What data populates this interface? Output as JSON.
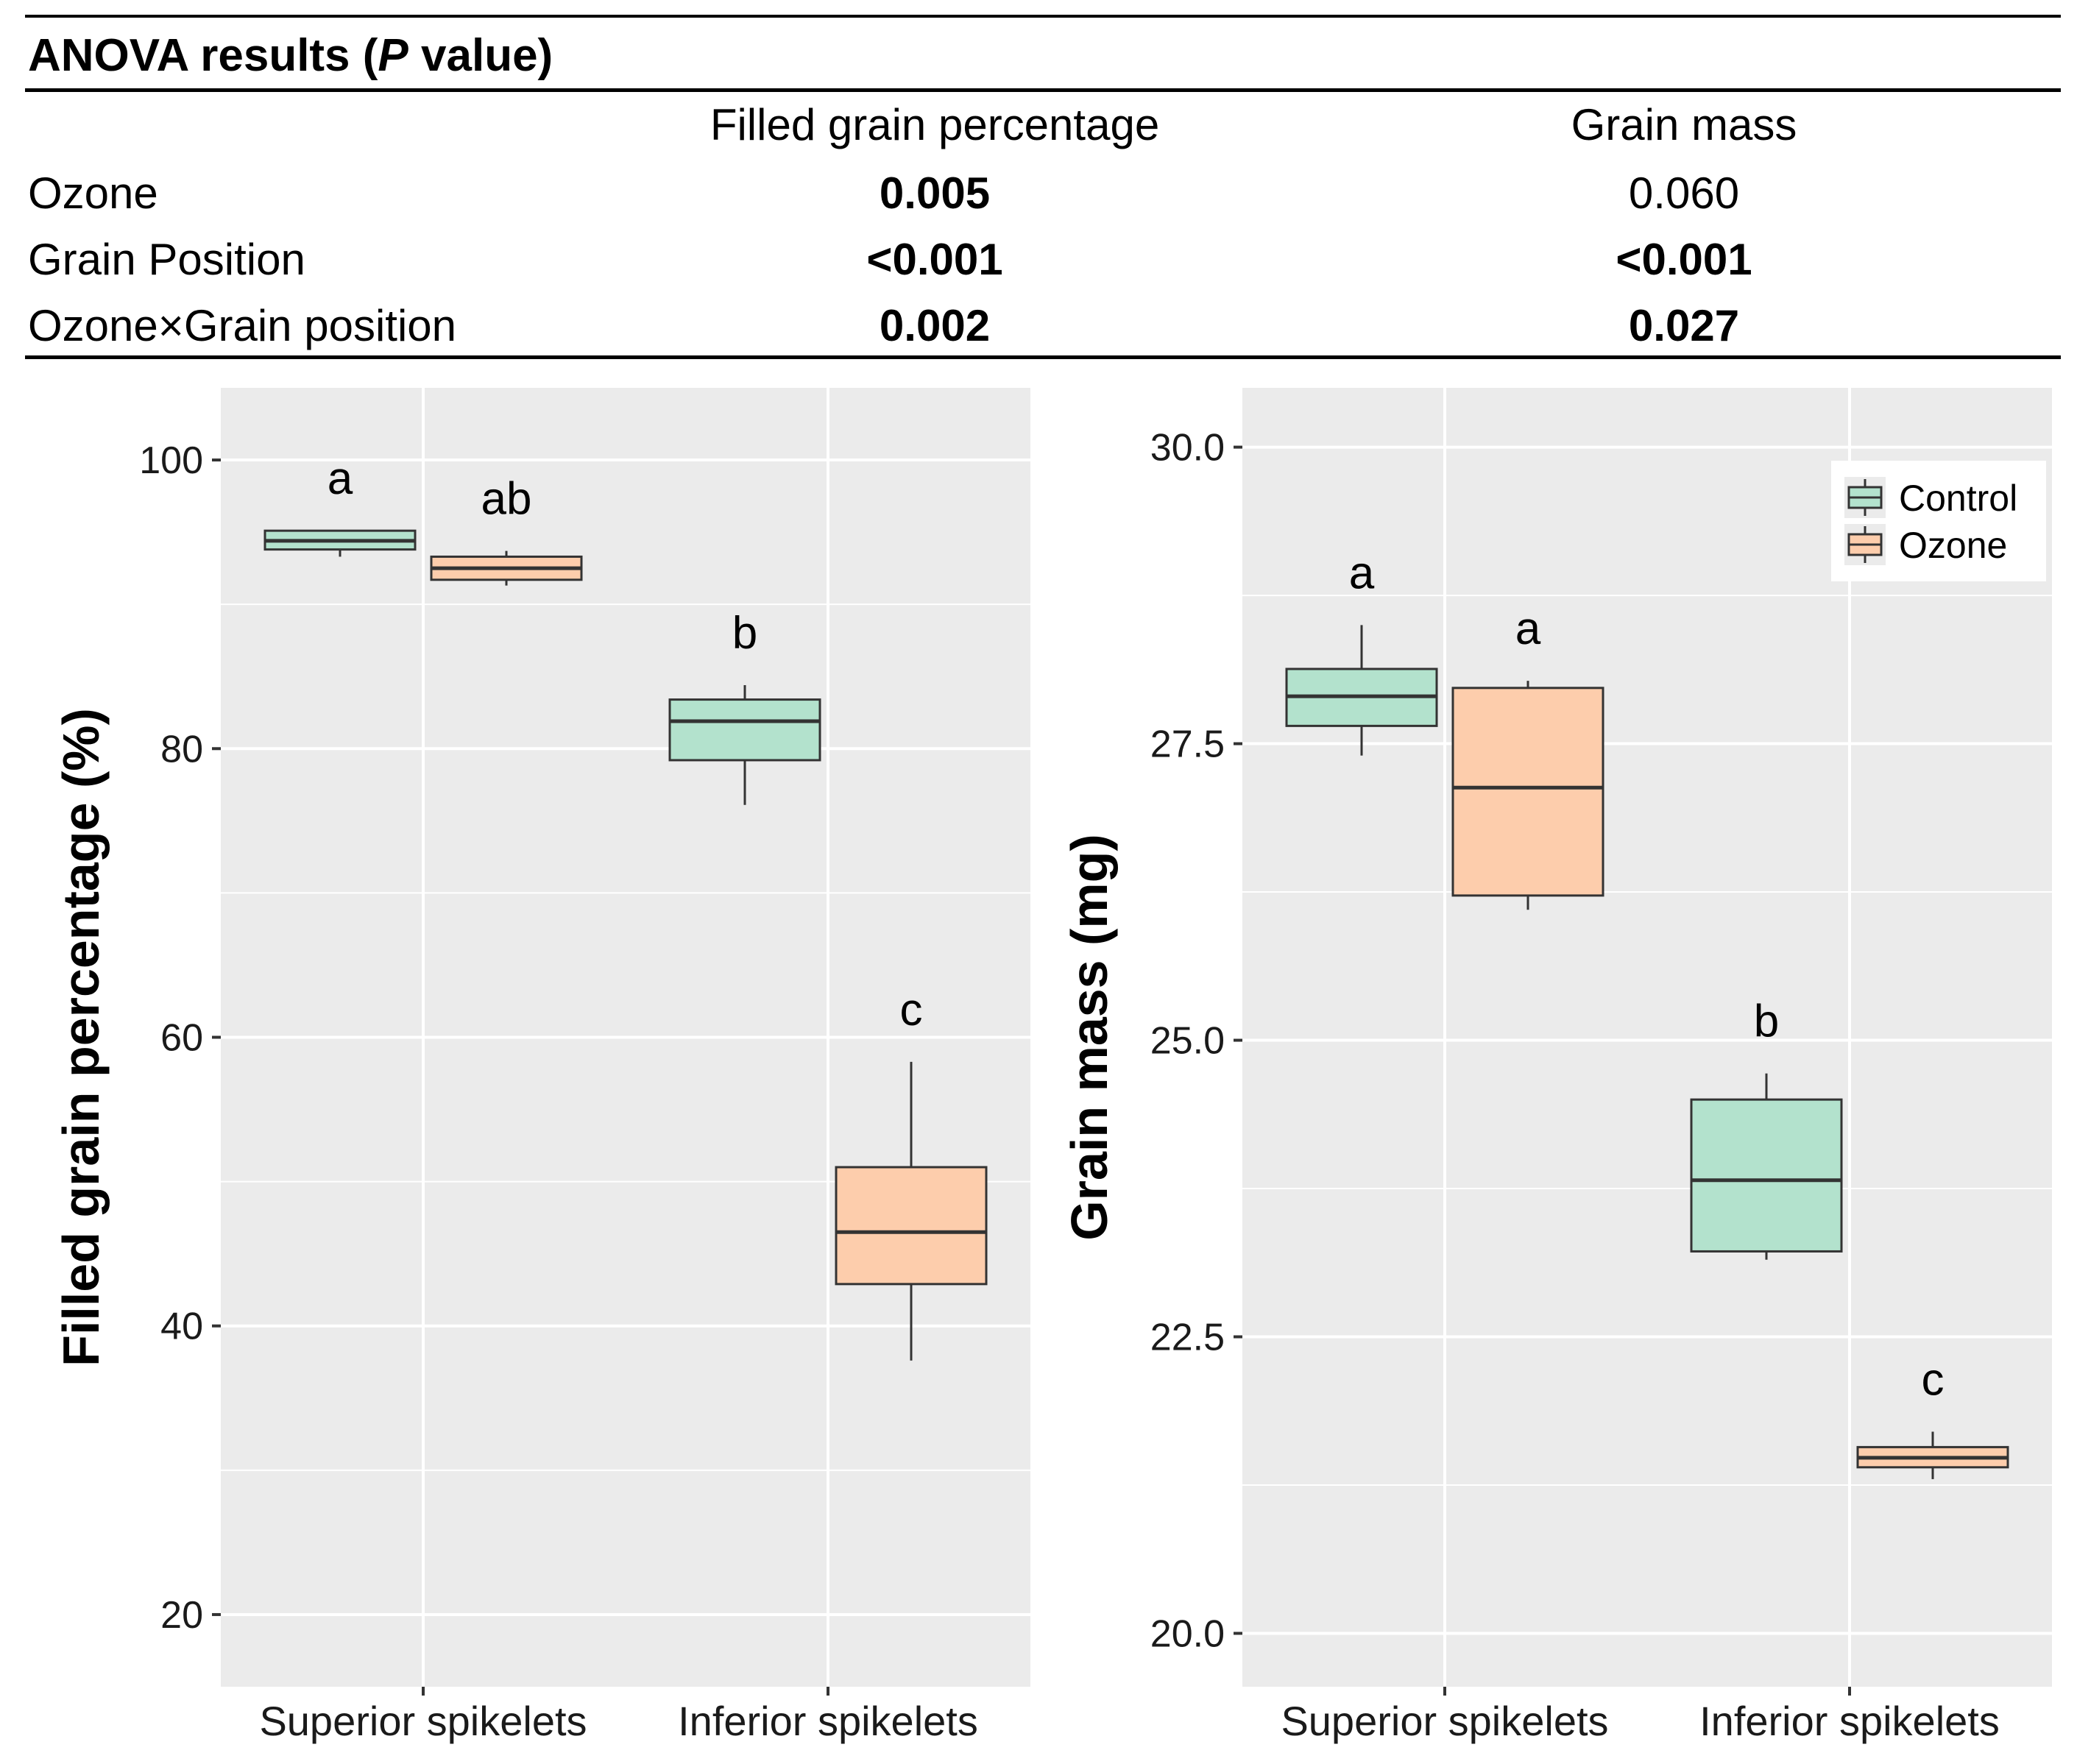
{
  "anova": {
    "title_prefix": "ANOVA results (",
    "title_italic": "P",
    "title_suffix": " value)",
    "columns": [
      "Filled grain percentage",
      "Grain mass"
    ],
    "rows": [
      {
        "label": "Ozone",
        "values": [
          {
            "text": "0.005",
            "bold": true
          },
          {
            "text": "0.060",
            "bold": false
          }
        ]
      },
      {
        "label": "Grain Position",
        "values": [
          {
            "text": "<0.001",
            "bold": true
          },
          {
            "text": "<0.001",
            "bold": true
          }
        ]
      },
      {
        "label": "Ozone×Grain position",
        "values": [
          {
            "text": "0.002",
            "bold": true
          },
          {
            "text": "0.027",
            "bold": true
          }
        ]
      }
    ]
  },
  "colors": {
    "panel_bg": "#ebebeb",
    "grid": "#ffffff",
    "control_fill": "#b3e2cd",
    "ozone_fill": "#fdcdac",
    "stroke": "#333333"
  },
  "chart_data": [
    {
      "type": "box",
      "ylabel": "Filled grain percentage (%)",
      "ylim": [
        15,
        105
      ],
      "yticks": [
        20,
        40,
        60,
        80,
        100
      ],
      "ytick_labels": [
        "20",
        "40",
        "60",
        "80",
        "100"
      ],
      "categories": [
        "Superior spikelets",
        "Inferior spikelets"
      ],
      "series": [
        {
          "name": "Control",
          "boxes": [
            {
              "min": 93.3,
              "q1": 93.8,
              "median": 94.4,
              "q3": 95.1,
              "max": 95.1,
              "letter": "a"
            },
            {
              "min": 76.1,
              "q1": 79.2,
              "median": 81.9,
              "q3": 83.4,
              "max": 84.4,
              "letter": "b"
            }
          ]
        },
        {
          "name": "Ozone",
          "boxes": [
            {
              "min": 91.3,
              "q1": 91.7,
              "median": 92.5,
              "q3": 93.3,
              "max": 93.7,
              "letter": "ab"
            },
            {
              "min": 37.6,
              "q1": 42.9,
              "median": 46.5,
              "q3": 51.0,
              "max": 58.3,
              "letter": "c"
            }
          ]
        }
      ],
      "legend": null
    },
    {
      "type": "box",
      "ylabel": "Grain mass (mg)",
      "ylim": [
        19.55,
        30.5
      ],
      "yticks": [
        20.0,
        22.5,
        25.0,
        27.5,
        30.0
      ],
      "ytick_labels": [
        "20.0",
        "22.5",
        "25.0",
        "27.5",
        "30.0"
      ],
      "categories": [
        "Superior spikelets",
        "Inferior spikelets"
      ],
      "series": [
        {
          "name": "Control",
          "boxes": [
            {
              "min": 27.4,
              "q1": 27.65,
              "median": 27.9,
              "q3": 28.13,
              "max": 28.5,
              "letter": "a"
            },
            {
              "min": 23.15,
              "q1": 23.22,
              "median": 23.82,
              "q3": 24.5,
              "max": 24.72,
              "letter": "b"
            }
          ]
        },
        {
          "name": "Ozone",
          "boxes": [
            {
              "min": 26.1,
              "q1": 26.22,
              "median": 27.13,
              "q3": 27.97,
              "max": 28.03,
              "letter": "a"
            },
            {
              "min": 21.3,
              "q1": 21.4,
              "median": 21.48,
              "q3": 21.57,
              "max": 21.7,
              "letter": "c"
            }
          ]
        }
      ],
      "legend": {
        "position": "top-right",
        "entries": [
          "Control",
          "Ozone"
        ]
      }
    }
  ]
}
